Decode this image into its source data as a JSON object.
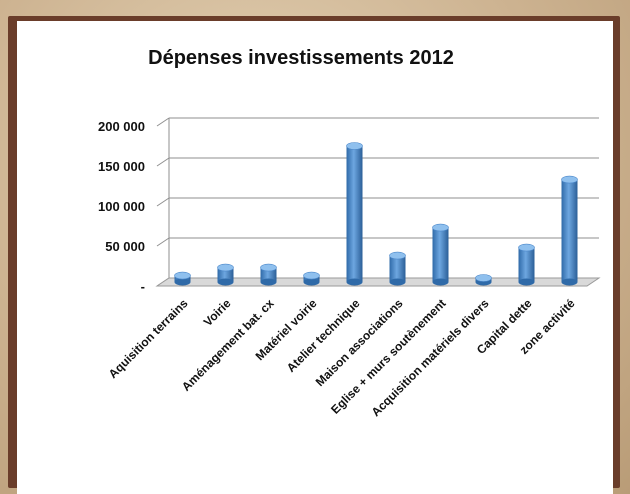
{
  "chart_data": {
    "type": "bar",
    "title": "Dépenses investissements 2012",
    "categories": [
      "Aquisition terrains",
      "Voirie",
      "Aménagement bat. cx",
      "Matériel voirie",
      "Atelier technique",
      "Maison associations",
      "Eglise + murs soutènement",
      "Acquisition matériels divers",
      "Capital dette",
      "zone activité"
    ],
    "values": [
      8000,
      18000,
      18000,
      8000,
      170000,
      33000,
      68000,
      5000,
      43000,
      128000
    ],
    "ylim": [
      0,
      200000
    ],
    "yticks": [
      0,
      50000,
      100000,
      150000,
      200000
    ],
    "ytick_labels": [
      "-",
      "50 000",
      "100 000",
      "150 000",
      "200 000"
    ],
    "grid": true,
    "bar_color": "#4a86c9",
    "style": "3d-cylinder"
  }
}
